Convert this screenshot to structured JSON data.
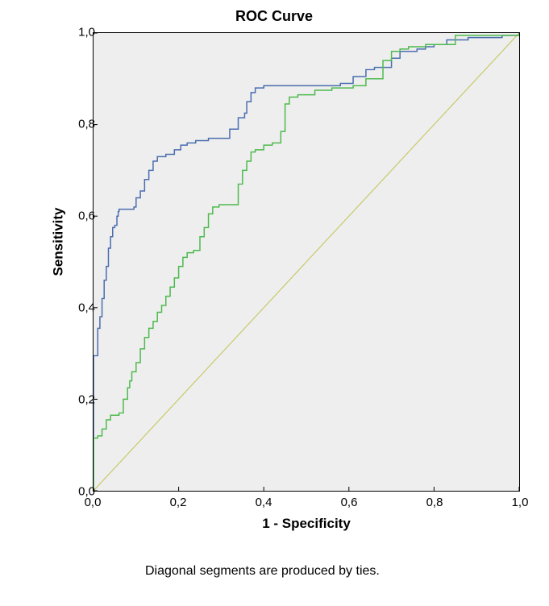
{
  "chart": {
    "title": "ROC Curve",
    "y_label": "Sensitivity",
    "x_label": "1 - Specificity",
    "footnote": "Diagonal segments are produced by ties.",
    "title_fontsize": 18,
    "label_fontsize": 17,
    "tick_fontsize": 15,
    "footnote_fontsize": 16,
    "type": "line",
    "background_color": "#eeeeee",
    "page_background": "#ffffff",
    "border_color": "#000000",
    "xlim": [
      0.0,
      1.0
    ],
    "ylim": [
      0.0,
      1.0
    ],
    "x_ticks": [
      "0,0",
      "0,2",
      "0,4",
      "0,6",
      "0,8",
      "1,0"
    ],
    "y_ticks": [
      "0,0",
      "0,2",
      "0,4",
      "0,6",
      "0,8",
      "1,0"
    ],
    "x_tick_positions": [
      0.0,
      0.2,
      0.4,
      0.6,
      0.8,
      1.0
    ],
    "y_tick_positions": [
      0.0,
      0.2,
      0.4,
      0.6,
      0.8,
      1.0
    ],
    "tick_length": 5,
    "diagonal": {
      "color": "#c9c96a",
      "width": 1.2,
      "points": [
        [
          0.0,
          0.0
        ],
        [
          1.0,
          1.0
        ]
      ]
    },
    "series": [
      {
        "name": "blue",
        "color": "#4a6db0",
        "width": 1.5,
        "points": [
          [
            0.0,
            0.0
          ],
          [
            0.0,
            0.295
          ],
          [
            0.01,
            0.305
          ],
          [
            0.01,
            0.355
          ],
          [
            0.015,
            0.38
          ],
          [
            0.02,
            0.42
          ],
          [
            0.025,
            0.46
          ],
          [
            0.03,
            0.49
          ],
          [
            0.035,
            0.53
          ],
          [
            0.04,
            0.555
          ],
          [
            0.045,
            0.575
          ],
          [
            0.05,
            0.58
          ],
          [
            0.055,
            0.6
          ],
          [
            0.058,
            0.61
          ],
          [
            0.06,
            0.615
          ],
          [
            0.065,
            0.615
          ],
          [
            0.09,
            0.615
          ],
          [
            0.095,
            0.62
          ],
          [
            0.1,
            0.64
          ],
          [
            0.11,
            0.655
          ],
          [
            0.12,
            0.68
          ],
          [
            0.13,
            0.7
          ],
          [
            0.14,
            0.72
          ],
          [
            0.15,
            0.73
          ],
          [
            0.17,
            0.735
          ],
          [
            0.19,
            0.745
          ],
          [
            0.205,
            0.755
          ],
          [
            0.22,
            0.76
          ],
          [
            0.24,
            0.765
          ],
          [
            0.27,
            0.77
          ],
          [
            0.3,
            0.77
          ],
          [
            0.32,
            0.79
          ],
          [
            0.34,
            0.815
          ],
          [
            0.355,
            0.825
          ],
          [
            0.36,
            0.85
          ],
          [
            0.37,
            0.87
          ],
          [
            0.38,
            0.88
          ],
          [
            0.4,
            0.885
          ],
          [
            0.45,
            0.885
          ],
          [
            0.55,
            0.885
          ],
          [
            0.58,
            0.89
          ],
          [
            0.61,
            0.905
          ],
          [
            0.64,
            0.92
          ],
          [
            0.66,
            0.925
          ],
          [
            0.68,
            0.925
          ],
          [
            0.7,
            0.945
          ],
          [
            0.72,
            0.96
          ],
          [
            0.74,
            0.96
          ],
          [
            0.76,
            0.965
          ],
          [
            0.78,
            0.97
          ],
          [
            0.8,
            0.975
          ],
          [
            0.83,
            0.985
          ],
          [
            0.85,
            0.985
          ],
          [
            0.88,
            0.99
          ],
          [
            0.92,
            0.99
          ],
          [
            0.96,
            0.99
          ],
          [
            0.96,
            0.995
          ],
          [
            1.0,
            1.0
          ]
        ]
      },
      {
        "name": "green",
        "color": "#4dba4d",
        "width": 1.5,
        "points": [
          [
            0.0,
            0.0
          ],
          [
            0.0,
            0.115
          ],
          [
            0.01,
            0.12
          ],
          [
            0.02,
            0.135
          ],
          [
            0.03,
            0.155
          ],
          [
            0.04,
            0.165
          ],
          [
            0.06,
            0.17
          ],
          [
            0.07,
            0.2
          ],
          [
            0.08,
            0.225
          ],
          [
            0.085,
            0.24
          ],
          [
            0.09,
            0.26
          ],
          [
            0.1,
            0.28
          ],
          [
            0.11,
            0.31
          ],
          [
            0.12,
            0.335
          ],
          [
            0.13,
            0.355
          ],
          [
            0.14,
            0.37
          ],
          [
            0.15,
            0.39
          ],
          [
            0.16,
            0.405
          ],
          [
            0.17,
            0.425
          ],
          [
            0.18,
            0.445
          ],
          [
            0.19,
            0.465
          ],
          [
            0.2,
            0.49
          ],
          [
            0.21,
            0.51
          ],
          [
            0.22,
            0.52
          ],
          [
            0.235,
            0.525
          ],
          [
            0.25,
            0.555
          ],
          [
            0.26,
            0.575
          ],
          [
            0.27,
            0.605
          ],
          [
            0.28,
            0.62
          ],
          [
            0.295,
            0.625
          ],
          [
            0.32,
            0.625
          ],
          [
            0.34,
            0.67
          ],
          [
            0.35,
            0.7
          ],
          [
            0.36,
            0.72
          ],
          [
            0.37,
            0.74
          ],
          [
            0.38,
            0.745
          ],
          [
            0.4,
            0.755
          ],
          [
            0.42,
            0.76
          ],
          [
            0.44,
            0.785
          ],
          [
            0.45,
            0.845
          ],
          [
            0.46,
            0.86
          ],
          [
            0.48,
            0.865
          ],
          [
            0.52,
            0.875
          ],
          [
            0.56,
            0.88
          ],
          [
            0.59,
            0.88
          ],
          [
            0.61,
            0.885
          ],
          [
            0.64,
            0.9
          ],
          [
            0.68,
            0.94
          ],
          [
            0.7,
            0.96
          ],
          [
            0.72,
            0.965
          ],
          [
            0.74,
            0.97
          ],
          [
            0.78,
            0.975
          ],
          [
            0.83,
            0.975
          ],
          [
            0.85,
            0.995
          ],
          [
            0.9,
            0.995
          ],
          [
            0.94,
            0.995
          ],
          [
            0.97,
            0.995
          ],
          [
            1.0,
            1.0
          ]
        ]
      }
    ]
  }
}
